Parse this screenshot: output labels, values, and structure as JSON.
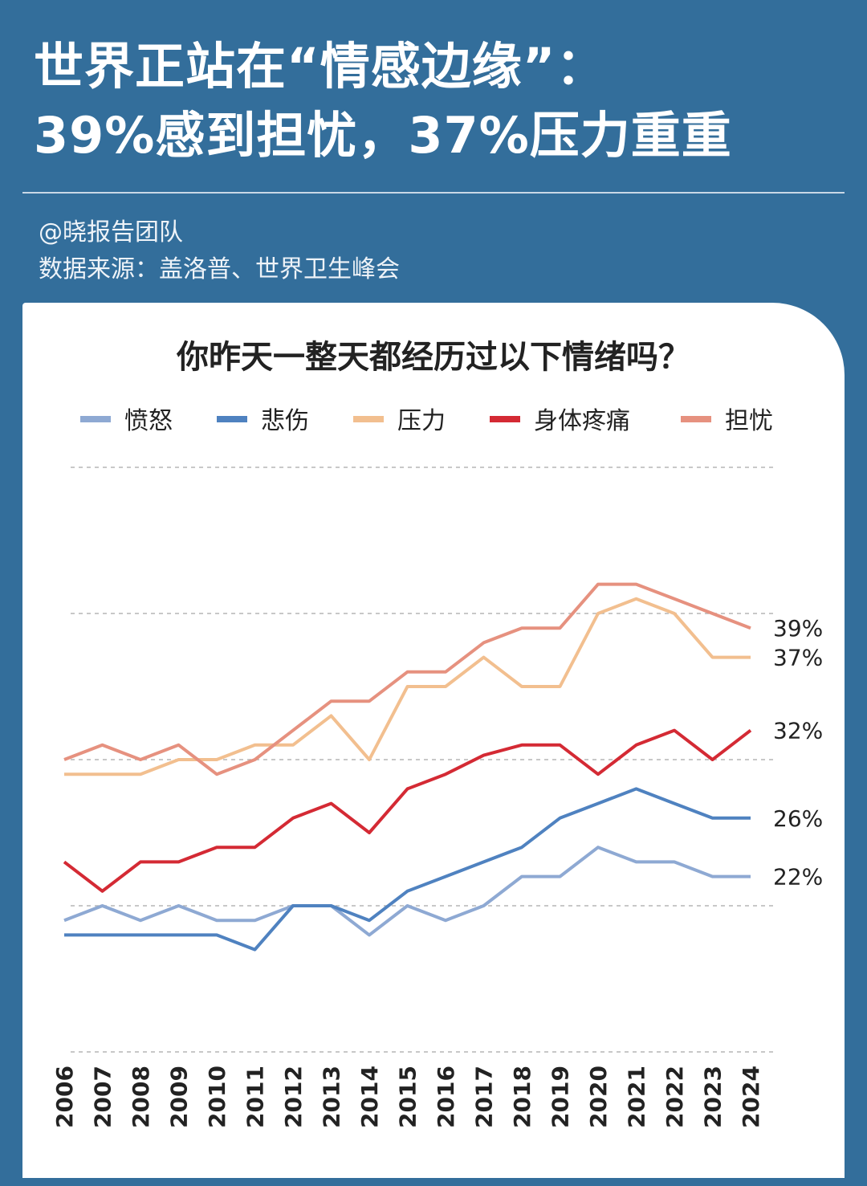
{
  "header": {
    "title_line1": "世界正站在“情感边缘”：",
    "title_line2": "39%感到担忧，37%压力重重",
    "author": "@晓报告团队",
    "source": "数据来源：盖洛普、世界卫生峰会"
  },
  "chart_data": {
    "type": "line",
    "title": "你昨天一整天都经历过以下情绪吗？",
    "x": [
      2006,
      2007,
      2008,
      2009,
      2010,
      2011,
      2012,
      2013,
      2014,
      2015,
      2016,
      2017,
      2018,
      2019,
      2020,
      2021,
      2022,
      2023,
      2024
    ],
    "ylim": [
      10,
      50
    ],
    "grid": "horizontal dashed",
    "legend": "top",
    "series": [
      {
        "name": "愤怒",
        "color": "#8ea9d3",
        "end_label": "22%",
        "values": [
          19,
          20,
          19,
          20,
          19,
          19,
          20,
          20,
          18,
          20,
          19,
          20,
          22,
          22,
          24,
          23,
          23,
          22,
          22
        ]
      },
      {
        "name": "悲伤",
        "color": "#4f82c0",
        "end_label": "26%",
        "values": [
          18,
          18,
          18,
          18,
          18,
          17,
          20,
          20,
          19,
          21,
          22,
          23,
          24,
          26,
          27,
          28,
          27,
          26,
          26
        ]
      },
      {
        "name": "压力",
        "color": "#f2bf8f",
        "end_label": "37%",
        "values": [
          29,
          29,
          29,
          30,
          30,
          31,
          31,
          33,
          30,
          35,
          35,
          37,
          35,
          35,
          40,
          41,
          40,
          37,
          37
        ]
      },
      {
        "name": "身体疼痛",
        "color": "#d42a34",
        "end_label": "32%",
        "values": [
          23,
          21,
          23,
          23,
          24,
          24,
          26,
          27,
          25,
          28,
          29,
          30.3,
          31,
          31,
          29,
          31,
          32,
          30,
          32
        ]
      },
      {
        "name": "担忧",
        "color": "#e6917f",
        "end_label": "39%",
        "values": [
          30,
          31,
          30,
          31,
          29,
          30,
          32,
          34,
          34,
          36,
          36,
          38,
          39,
          39,
          42,
          42,
          41,
          40,
          39
        ]
      }
    ]
  }
}
